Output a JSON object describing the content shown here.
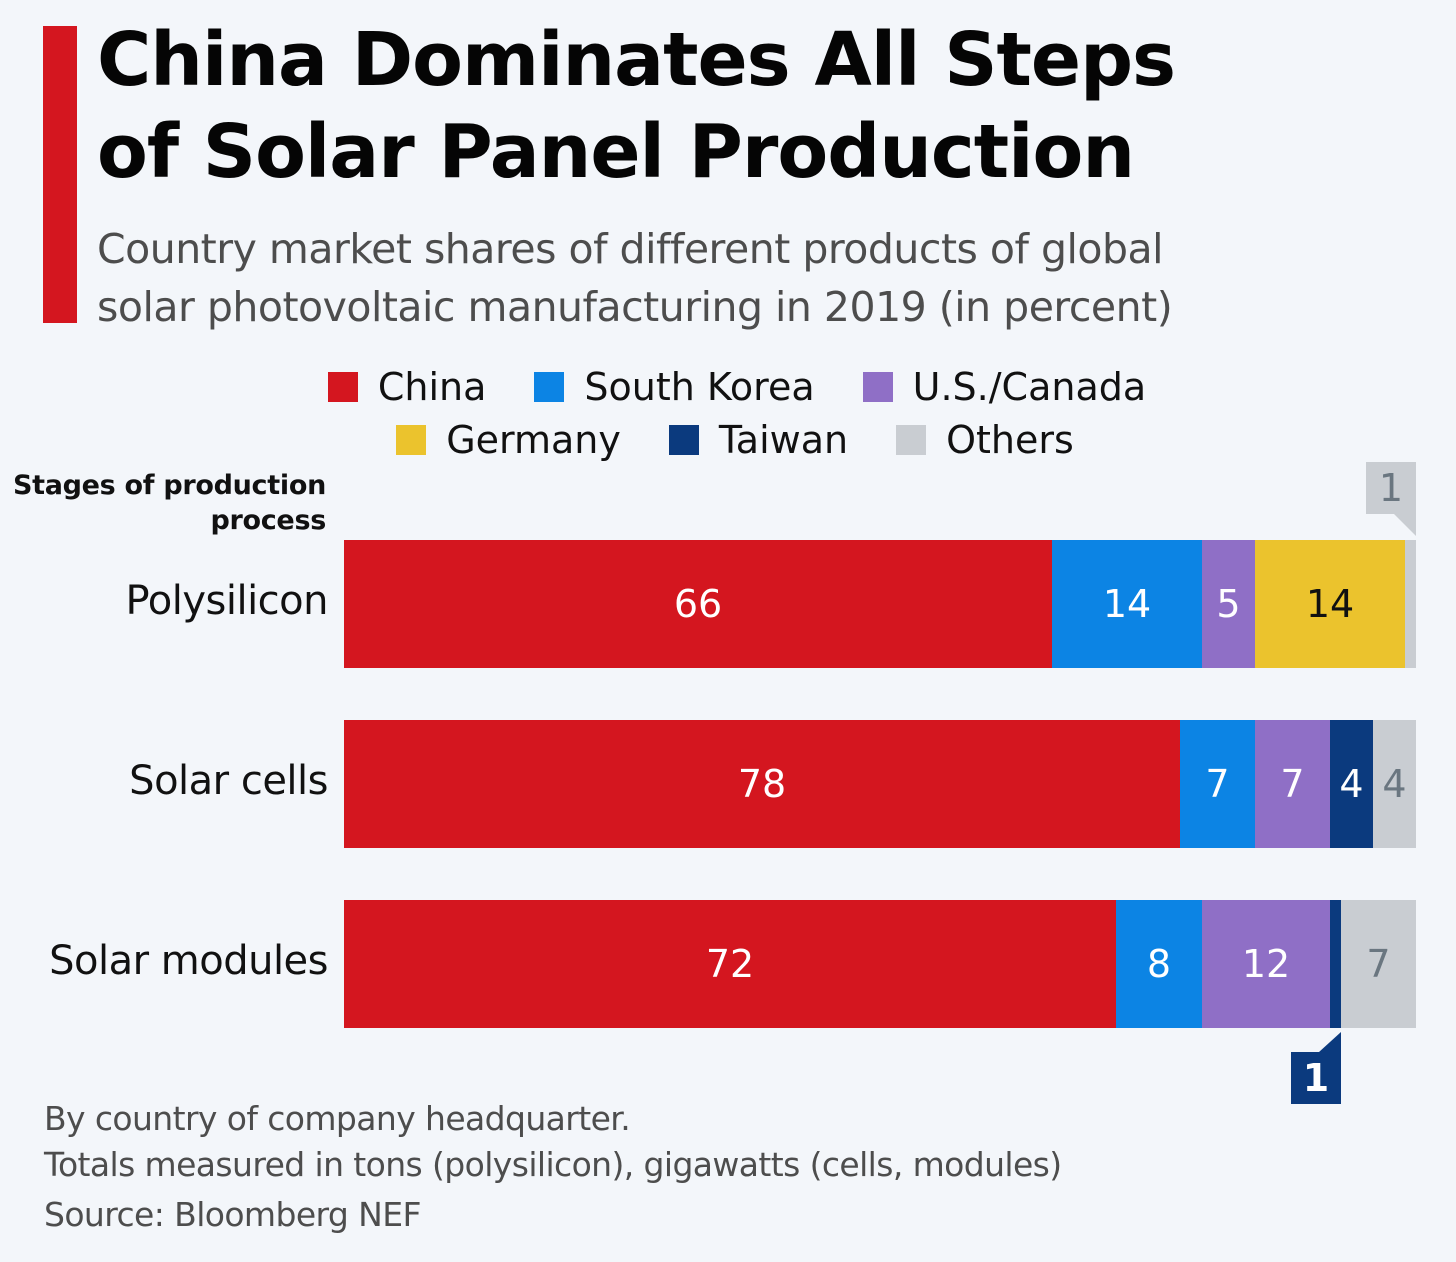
{
  "header": {
    "title_line1": "China Dominates All Steps",
    "title_line2": "of Solar Panel Production",
    "subtitle_line1": "Country market shares of different products of global",
    "subtitle_line2": "solar photovoltaic manufacturing in 2019 (in percent)"
  },
  "colors": {
    "accent": "#d4161f",
    "background": "#f3f6fa"
  },
  "footer": {
    "note1": "By country of company headquarter.",
    "note2": "Totals measured in tons (polysilicon), gigawatts (cells, modules)",
    "source": "Source: Bloomberg NEF"
  },
  "chart_data": {
    "type": "bar",
    "orientation": "horizontal",
    "stacked": true,
    "title": "China Dominates All Steps of Solar Panel Production",
    "subtitle": "Country market shares of different products of global solar photovoltaic manufacturing in 2019 (in percent)",
    "ylabel": "Stages of production process",
    "xlabel": "",
    "xlim": [
      0,
      100
    ],
    "grid": false,
    "legend_position": "top-center",
    "categories": [
      "Polysilicon",
      "Solar cells",
      "Solar modules"
    ],
    "series": [
      {
        "name": "China",
        "color": "#d4161f",
        "label_color": "#ffffff",
        "values": [
          66,
          78,
          72
        ]
      },
      {
        "name": "South Korea",
        "color": "#0c84e4",
        "label_color": "#ffffff",
        "values": [
          14,
          7,
          8
        ]
      },
      {
        "name": "U.S./Canada",
        "color": "#8f6fc6",
        "label_color": "#ffffff",
        "values": [
          5,
          7,
          12
        ]
      },
      {
        "name": "Germany",
        "color": "#ebc32d",
        "label_color": "#111111",
        "values": [
          14,
          0,
          0
        ]
      },
      {
        "name": "Taiwan",
        "color": "#0b3a7e",
        "label_color": "#ffffff",
        "values": [
          0,
          4,
          1
        ]
      },
      {
        "name": "Others",
        "color": "#c9cdd2",
        "label_color": "#6a7680",
        "values": [
          1,
          4,
          7
        ]
      }
    ],
    "annotations": [
      {
        "category": "Polysilicon",
        "series": "Others",
        "text": "1",
        "placement": "above"
      },
      {
        "category": "Solar modules",
        "series": "Taiwan",
        "text": "1",
        "placement": "below"
      }
    ]
  }
}
